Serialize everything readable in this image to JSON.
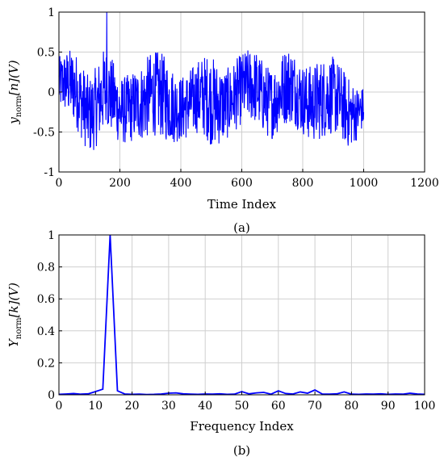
{
  "chart_data": [
    {
      "id": "a",
      "type": "line",
      "caption": "(a)",
      "xlabel": "Time Index",
      "ylabel_main": "y",
      "ylabel_sub": "norm",
      "ylabel_rest": "[n](V)",
      "xlim": [
        0,
        1200
      ],
      "ylim": [
        -1,
        1
      ],
      "xticks": [
        0,
        200,
        400,
        600,
        800,
        1000,
        1200
      ],
      "yticks": [
        -1,
        -0.5,
        0,
        0.5,
        1
      ],
      "grid": true,
      "color": "#0000ff",
      "n_points": 1000,
      "series": [
        {
          "x_start": 0,
          "x_end": 1000,
          "envelope_x": [
            0,
            50,
            100,
            150,
            200,
            250,
            300,
            350,
            400,
            450,
            500,
            550,
            600,
            650,
            700,
            750,
            800,
            850,
            900,
            950,
            1000
          ],
          "envelope_hi": [
            0.5,
            0.55,
            0.35,
            0.65,
            0.2,
            0.45,
            0.55,
            0.5,
            0.35,
            0.4,
            0.55,
            0.45,
            0.5,
            0.6,
            0.45,
            0.6,
            0.45,
            0.55,
            0.45,
            0.3,
            0.15
          ],
          "envelope_lo": [
            -0.3,
            -0.55,
            -0.8,
            -0.6,
            -0.8,
            -0.6,
            -0.7,
            -0.75,
            -0.6,
            -0.65,
            -0.8,
            -0.6,
            -0.55,
            -0.5,
            -0.6,
            -0.55,
            -0.6,
            -0.65,
            -0.7,
            -0.75,
            -0.45
          ],
          "peak": {
            "x": 157,
            "y": 1.0
          }
        }
      ]
    },
    {
      "id": "b",
      "type": "line",
      "caption": "(b)",
      "xlabel": "Frequency Index",
      "ylabel_main": "Y",
      "ylabel_sub": "norm",
      "ylabel_rest": "[k](V)",
      "xlim": [
        0,
        100
      ],
      "ylim": [
        0,
        1
      ],
      "xticks": [
        0,
        10,
        20,
        30,
        40,
        50,
        60,
        70,
        80,
        90,
        100
      ],
      "yticks": [
        0,
        0.2,
        0.4,
        0.6,
        0.8,
        1
      ],
      "grid": true,
      "color": "#0000ff",
      "series": [
        {
          "x": [
            0,
            2,
            4,
            6,
            8,
            10,
            12,
            14,
            16,
            18,
            20,
            22,
            24,
            26,
            28,
            30,
            32,
            34,
            36,
            38,
            40,
            42,
            44,
            46,
            48,
            50,
            52,
            54,
            56,
            58,
            60,
            62,
            64,
            66,
            68,
            70,
            72,
            74,
            76,
            78,
            80,
            82,
            84,
            86,
            88,
            90,
            92,
            94,
            96,
            98,
            100
          ],
          "y": [
            0.003,
            0.005,
            0.008,
            0.004,
            0.006,
            0.02,
            0.035,
            1.0,
            0.025,
            0.005,
            0.003,
            0.004,
            0.002,
            0.003,
            0.005,
            0.01,
            0.012,
            0.006,
            0.004,
            0.003,
            0.005,
            0.004,
            0.006,
            0.003,
            0.004,
            0.02,
            0.006,
            0.012,
            0.015,
            0.004,
            0.025,
            0.008,
            0.005,
            0.018,
            0.01,
            0.03,
            0.005,
            0.004,
            0.006,
            0.018,
            0.004,
            0.003,
            0.005,
            0.004,
            0.006,
            0.003,
            0.005,
            0.004,
            0.01,
            0.005,
            0.003
          ]
        }
      ]
    }
  ]
}
